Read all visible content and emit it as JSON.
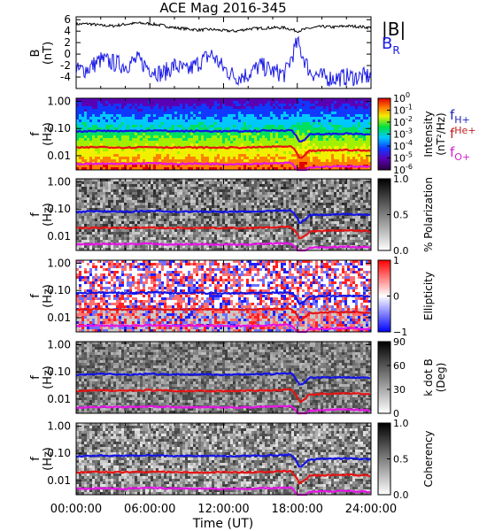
{
  "title": "ACE Mag 2016-345",
  "time_axis": {
    "label": "Time (UT)",
    "ticks": [
      "00:00:00",
      "06:00:00",
      "12:00:00",
      "18:00:00",
      "24:00:00"
    ],
    "range_hours": [
      0,
      24
    ]
  },
  "colors": {
    "B_total": "#000000",
    "B_R": "#1a1ae6",
    "f_H": "#1414e6",
    "f_He": "#e61414",
    "f_O": "#e614e6",
    "legend_B_R": "#1a1ae6",
    "legend_f_H": "#2020c0",
    "legend_f_He": "#c02020",
    "legend_f_O": "#d020d0"
  },
  "legend": {
    "b_total": "|B|",
    "b_r": "B",
    "b_r_sub": "R",
    "f": "f",
    "f_h_sub": "H+",
    "f_he_sub": "He+",
    "f_o_sub": "O+"
  },
  "panels": [
    {
      "name": "field",
      "ylabel_line1": "B",
      "ylabel_line2": "(nT)",
      "y_ticks": [
        "6",
        "4",
        "2",
        "0",
        "-2",
        "-4"
      ]
    },
    {
      "name": "intensity",
      "ylabel_line1": "f",
      "ylabel_line2": "(Hz)",
      "y_ticks": [
        "1.00",
        "0.10",
        "0.01"
      ],
      "colorbar_label_line1": "Intensity",
      "colorbar_label_line2": "(nT²/Hz)",
      "colorbar_ticks": [
        {
          "base": "10",
          "exp": "0"
        },
        {
          "base": "10",
          "exp": "-1"
        },
        {
          "base": "10",
          "exp": "-2"
        },
        {
          "base": "10",
          "exp": "-3"
        },
        {
          "base": "10",
          "exp": "-4"
        },
        {
          "base": "10",
          "exp": "-5"
        },
        {
          "base": "10",
          "exp": "-6"
        }
      ]
    },
    {
      "name": "polarization",
      "ylabel_line1": "f",
      "ylabel_line2": "(Hz)",
      "y_ticks": [
        "1.00",
        "0.10",
        "0.01"
      ],
      "colorbar_label_line1": "% Polarization",
      "colorbar_label_line2": "",
      "colorbar_ticks": [
        "1.0",
        "0.5",
        "0.0"
      ]
    },
    {
      "name": "ellipticity",
      "ylabel_line1": "f",
      "ylabel_line2": "(Hz)",
      "y_ticks": [
        "1.00",
        "0.10",
        "0.01"
      ],
      "colorbar_label_line1": "Ellipticity",
      "colorbar_label_line2": "",
      "colorbar_ticks": [
        "1",
        "0",
        "−1"
      ]
    },
    {
      "name": "kdotb",
      "ylabel_line1": "f",
      "ylabel_line2": "(Hz)",
      "y_ticks": [
        "1.00",
        "0.10",
        "0.01"
      ],
      "colorbar_label_line1": "k dot B",
      "colorbar_label_line2": "(Deg)",
      "colorbar_ticks": [
        "90",
        "60",
        "30",
        "0"
      ]
    },
    {
      "name": "coherency",
      "ylabel_line1": "f",
      "ylabel_line2": "(Hz)",
      "y_ticks": [
        "1.00",
        "0.10",
        "0.01"
      ],
      "colorbar_label_line1": "Coherency",
      "colorbar_label_line2": "",
      "colorbar_ticks": [
        "1.0",
        "0.5",
        "0.0"
      ]
    }
  ],
  "chart_data": {
    "type": "line",
    "title": "ACE Mag 2016-345",
    "xlabel": "Time (UT)",
    "xlim_hours": [
      0,
      24
    ],
    "field_panel": {
      "ylabel": "B (nT)",
      "ylim": [
        -6,
        6.5
      ],
      "series": [
        {
          "name": "|B|",
          "hours": [
            0,
            1,
            2,
            3,
            4,
            5,
            6,
            7,
            8,
            9,
            10,
            11,
            12,
            13,
            14,
            15,
            16,
            17,
            18,
            19,
            20,
            21,
            22,
            23,
            24
          ],
          "values": [
            5.2,
            5.3,
            5.0,
            4.9,
            5.2,
            5.4,
            5.3,
            5.0,
            4.6,
            4.4,
            4.2,
            4.3,
            4.1,
            4.0,
            4.4,
            4.5,
            4.6,
            4.6,
            4.0,
            4.5,
            4.8,
            4.7,
            4.9,
            4.8,
            4.6
          ]
        },
        {
          "name": "B_R",
          "hours": [
            0,
            1,
            2,
            3,
            4,
            5,
            6,
            7,
            8,
            9,
            10,
            11,
            12,
            13,
            14,
            15,
            16,
            17,
            18,
            19,
            20,
            21,
            22,
            23,
            24
          ],
          "values": [
            -3.0,
            -2.5,
            -1.0,
            -1.5,
            -2.0,
            -1.0,
            -2.5,
            -3.5,
            -2.0,
            -3.0,
            -1.5,
            0.0,
            -2.5,
            -4.0,
            -3.5,
            -2.0,
            -3.0,
            -3.5,
            2.0,
            -3.0,
            -4.0,
            -4.2,
            -4.0,
            -4.0,
            -3.8
          ]
        }
      ]
    },
    "frequency_panels": {
      "ylabel": "f (Hz)",
      "y_scale": "log",
      "ylim": [
        0.003,
        1.3
      ],
      "series": [
        {
          "name": "f_H+",
          "hours": [
            0,
            2,
            4,
            6,
            8,
            10,
            12,
            14,
            16,
            17.5,
            18.2,
            18.6,
            19,
            20,
            22,
            24
          ],
          "values": [
            0.078,
            0.083,
            0.08,
            0.085,
            0.08,
            0.081,
            0.079,
            0.08,
            0.085,
            0.087,
            0.03,
            0.04,
            0.06,
            0.062,
            0.065,
            0.06
          ]
        },
        {
          "name": "f_He+",
          "hours": [
            0,
            2,
            4,
            6,
            8,
            10,
            12,
            14,
            16,
            17.5,
            18.2,
            18.6,
            19,
            20,
            22,
            24
          ],
          "values": [
            0.0195,
            0.021,
            0.02,
            0.021,
            0.02,
            0.02,
            0.0198,
            0.02,
            0.0213,
            0.022,
            0.0075,
            0.01,
            0.015,
            0.0155,
            0.0163,
            0.015
          ]
        },
        {
          "name": "f_O+",
          "hours": [
            0,
            2,
            4,
            6,
            8,
            10,
            12,
            14,
            16,
            17.5,
            18.2,
            18.6,
            19,
            20,
            22,
            24
          ],
          "values": [
            0.0049,
            0.0052,
            0.005,
            0.0053,
            0.005,
            0.0051,
            0.0049,
            0.005,
            0.0053,
            0.0055,
            0.0019,
            0.0025,
            0.0038,
            0.0039,
            0.0041,
            0.0038
          ]
        }
      ]
    }
  }
}
